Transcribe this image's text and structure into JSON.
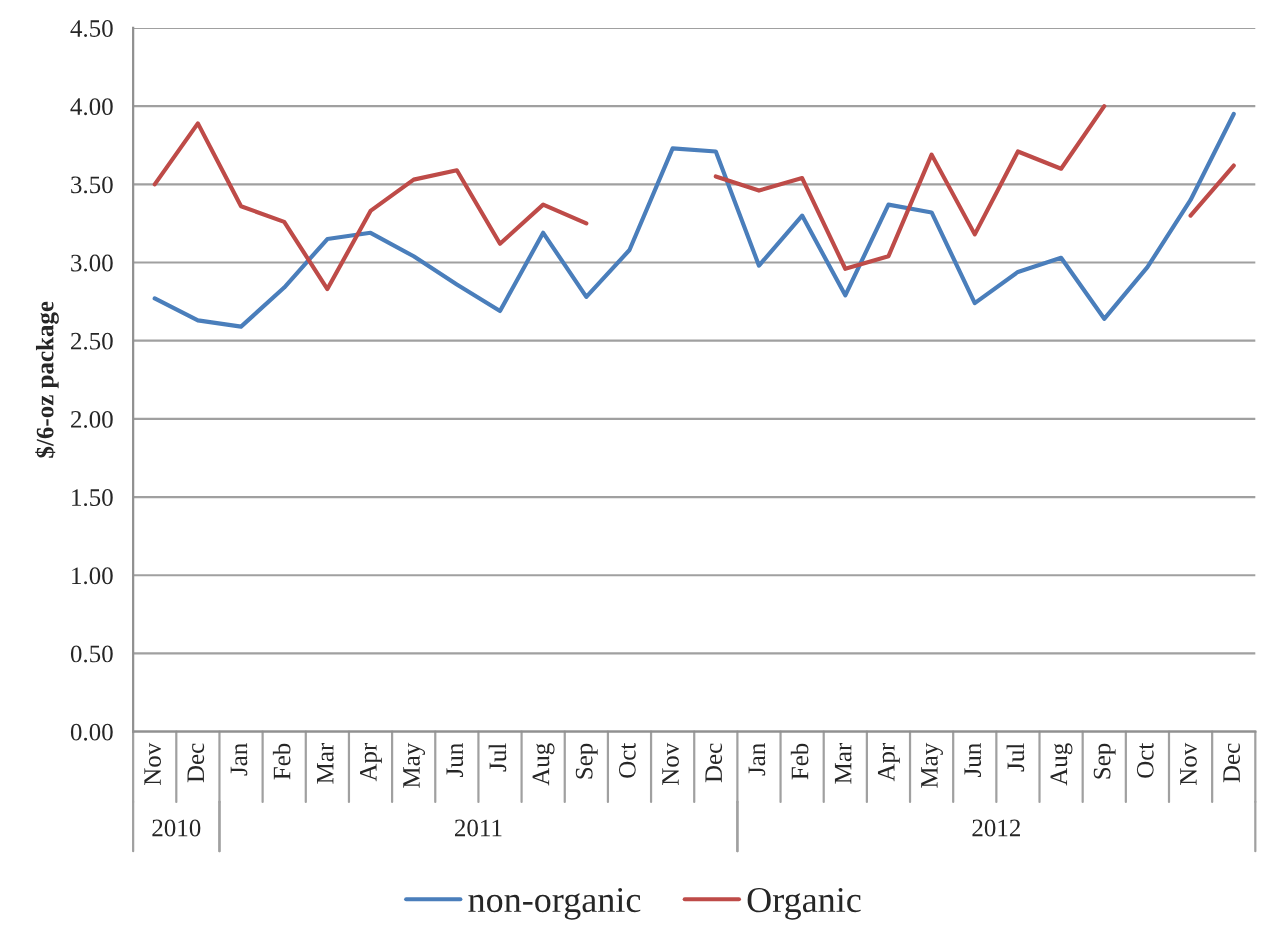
{
  "chart_data": {
    "type": "line",
    "ylabel": "$/6-oz package",
    "categories": [
      "Nov",
      "Dec",
      "Jan",
      "Feb",
      "Mar",
      "Apr",
      "May",
      "Jun",
      "Jul",
      "Aug",
      "Sep",
      "Oct",
      "Nov",
      "Dec",
      "Jan",
      "Feb",
      "Mar",
      "Apr",
      "May",
      "Jun",
      "Jul",
      "Aug",
      "Sep",
      "Oct",
      "Nov",
      "Dec"
    ],
    "series": [
      {
        "name": "non-organic",
        "color": "#4a7ebb",
        "values": [
          2.77,
          2.63,
          2.59,
          2.84,
          3.15,
          3.19,
          3.04,
          2.86,
          2.69,
          3.19,
          2.78,
          3.08,
          3.73,
          3.71,
          2.98,
          3.3,
          2.79,
          3.37,
          3.32,
          2.74,
          2.94,
          3.03,
          2.64,
          2.97,
          3.4,
          3.95
        ]
      },
      {
        "name": "Organic",
        "color": "#be4b48",
        "values": [
          3.5,
          3.89,
          3.36,
          3.26,
          2.83,
          3.33,
          3.53,
          3.59,
          3.12,
          3.37,
          3.25,
          null,
          null,
          3.55,
          3.46,
          3.54,
          2.96,
          3.04,
          3.69,
          3.18,
          3.71,
          3.6,
          4.0,
          null,
          3.3,
          3.62
        ]
      }
    ],
    "ylim": [
      0,
      4.5
    ],
    "yticks": [
      {
        "value": 0,
        "label": "0.00"
      },
      {
        "value": 0.5,
        "label": "0.50"
      },
      {
        "value": 1,
        "label": "1.00"
      },
      {
        "value": 1.5,
        "label": "1.50"
      },
      {
        "value": 2,
        "label": "2.00"
      },
      {
        "value": 2.5,
        "label": "2.50"
      },
      {
        "value": 3,
        "label": "3.00"
      },
      {
        "value": 3.5,
        "label": "3.50"
      },
      {
        "value": 4,
        "label": "4.00"
      },
      {
        "value": 4.5,
        "label": "4.50"
      }
    ],
    "grid": "y",
    "legend": "bottom",
    "marker": "none",
    "line_style": "solid",
    "annotations": [
      "2010",
      "2011",
      "2012"
    ]
  }
}
